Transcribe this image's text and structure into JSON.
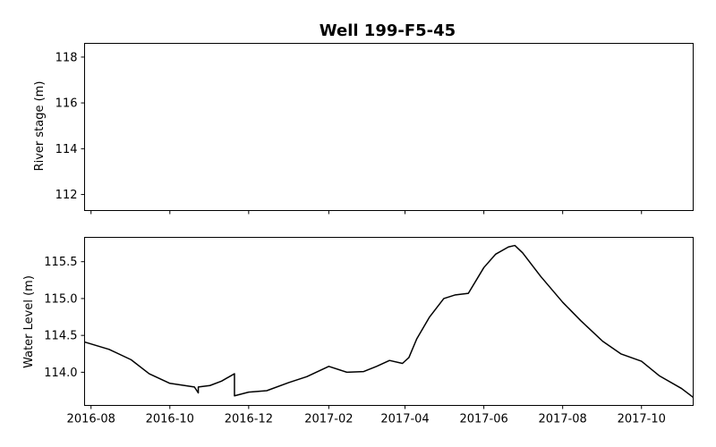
{
  "chart_data": [
    {
      "type": "line",
      "title": "Well 199-F5-45",
      "xlabel": "",
      "ylabel": "River stage (m)",
      "ylim": [
        111.3,
        118.6
      ],
      "yticks": [
        "112",
        "114",
        "116",
        "118"
      ],
      "xlim": [
        "2016-07-27",
        "2017-11-10"
      ],
      "xticks": [],
      "grid": false,
      "series": []
    },
    {
      "type": "line",
      "title": "",
      "xlabel": "",
      "ylabel": "Water Level (m)",
      "ylim": [
        113.55,
        115.83
      ],
      "yticks": [
        "114.0",
        "114.5",
        "115.0",
        "115.5"
      ],
      "xlim": [
        "2016-07-27",
        "2017-11-10"
      ],
      "xticks": [
        "2016-08",
        "2016-10",
        "2016-12",
        "2017-02",
        "2017-04",
        "2017-06",
        "2017-08",
        "2017-10"
      ],
      "grid": false,
      "series": [
        {
          "name": "",
          "color": "#000000",
          "x": [
            "2016-07-27",
            "2016-08-15",
            "2016-09-01",
            "2016-09-15",
            "2016-10-01",
            "2016-10-20",
            "2016-10-23",
            "2016-10-23",
            "2016-10-23",
            "2016-11-01",
            "2016-11-10",
            "2016-11-20",
            "2016-11-20",
            "2016-12-01",
            "2016-12-15",
            "2017-01-01",
            "2017-01-15",
            "2017-02-01",
            "2017-02-15",
            "2017-02-28",
            "2017-03-10",
            "2017-03-20",
            "2017-03-30",
            "2017-04-04",
            "2017-04-10",
            "2017-04-20",
            "2017-05-01",
            "2017-05-10",
            "2017-05-20",
            "2017-06-01",
            "2017-06-10",
            "2017-06-20",
            "2017-06-25",
            "2017-07-01",
            "2017-07-15",
            "2017-08-01",
            "2017-08-15",
            "2017-09-01",
            "2017-09-15",
            "2017-10-01",
            "2017-10-15",
            "2017-11-01",
            "2017-11-10"
          ],
          "y": [
            114.41,
            114.31,
            114.17,
            113.98,
            113.85,
            113.8,
            113.72,
            113.8,
            113.8,
            113.82,
            113.88,
            113.98,
            113.68,
            113.73,
            113.75,
            113.86,
            113.94,
            114.08,
            114.0,
            114.01,
            114.08,
            114.16,
            114.12,
            114.2,
            114.45,
            114.75,
            115.0,
            115.05,
            115.07,
            115.42,
            115.6,
            115.7,
            115.72,
            115.62,
            115.3,
            114.95,
            114.7,
            114.42,
            114.25,
            114.15,
            113.95,
            113.78,
            113.66
          ]
        }
      ]
    }
  ]
}
